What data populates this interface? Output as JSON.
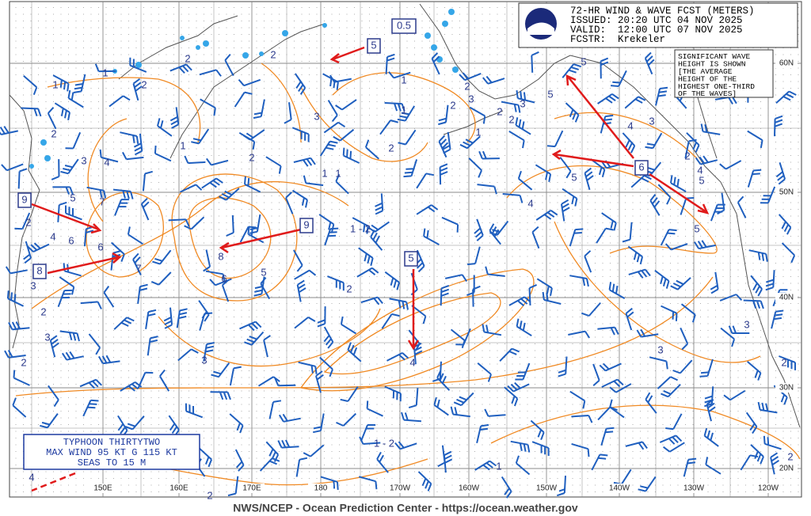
{
  "header": {
    "lines": [
      "72-HR WIND & WAVE FCST (METERS)",
      "ISSUED: 20:20 UTC 04 NOV 2025",
      "VALID:  12:00 UTC 07 NOV 2025",
      "FCSTR:  Krekeler"
    ]
  },
  "note": {
    "lines": [
      "SIGNIFICANT WAVE",
      "HEIGHT IS SHOWN",
      "[THE AVERAGE",
      "HEIGHT OF THE",
      "HIGHEST ONE-THIRD",
      "OF THE WAVES]"
    ]
  },
  "typhoon": {
    "lines": [
      "TYPHOON THIRTYTWO",
      "MAX WIND 95 KT G 115 KT",
      "SEAS TO 15 M"
    ]
  },
  "footer": "NWS/NCEP - Ocean Prediction Center - https://ocean.weather.gov",
  "lon_labels": [
    "150E",
    "160E",
    "170E",
    "180",
    "170W",
    "160W",
    "150W",
    "140W",
    "130W",
    "120W"
  ],
  "lat_labels": [
    "60N",
    "50N",
    "40N",
    "30N",
    "20N"
  ],
  "boxes": [
    "0.5",
    "5",
    "9",
    "8",
    "9",
    "5",
    "6"
  ],
  "contour_labels": [
    "1",
    "2",
    "1",
    "2",
    "2",
    "1",
    "1",
    "2",
    "3",
    "2",
    "1",
    "1",
    "1",
    "2",
    "3",
    "4",
    "5",
    "2",
    "4",
    "6",
    "7",
    "6",
    "7",
    "8",
    "6",
    "5",
    "2",
    "1 - 2",
    "4",
    "4",
    "5",
    "5",
    "4",
    "3",
    "2",
    "4",
    "5",
    "5",
    "5",
    "3",
    "3",
    "2",
    "2",
    "1 - 2",
    "3",
    "3",
    "2",
    "3",
    "2",
    "2",
    "3",
    "2",
    "1",
    "2",
    "3",
    "2",
    "1",
    "2",
    "4"
  ]
}
